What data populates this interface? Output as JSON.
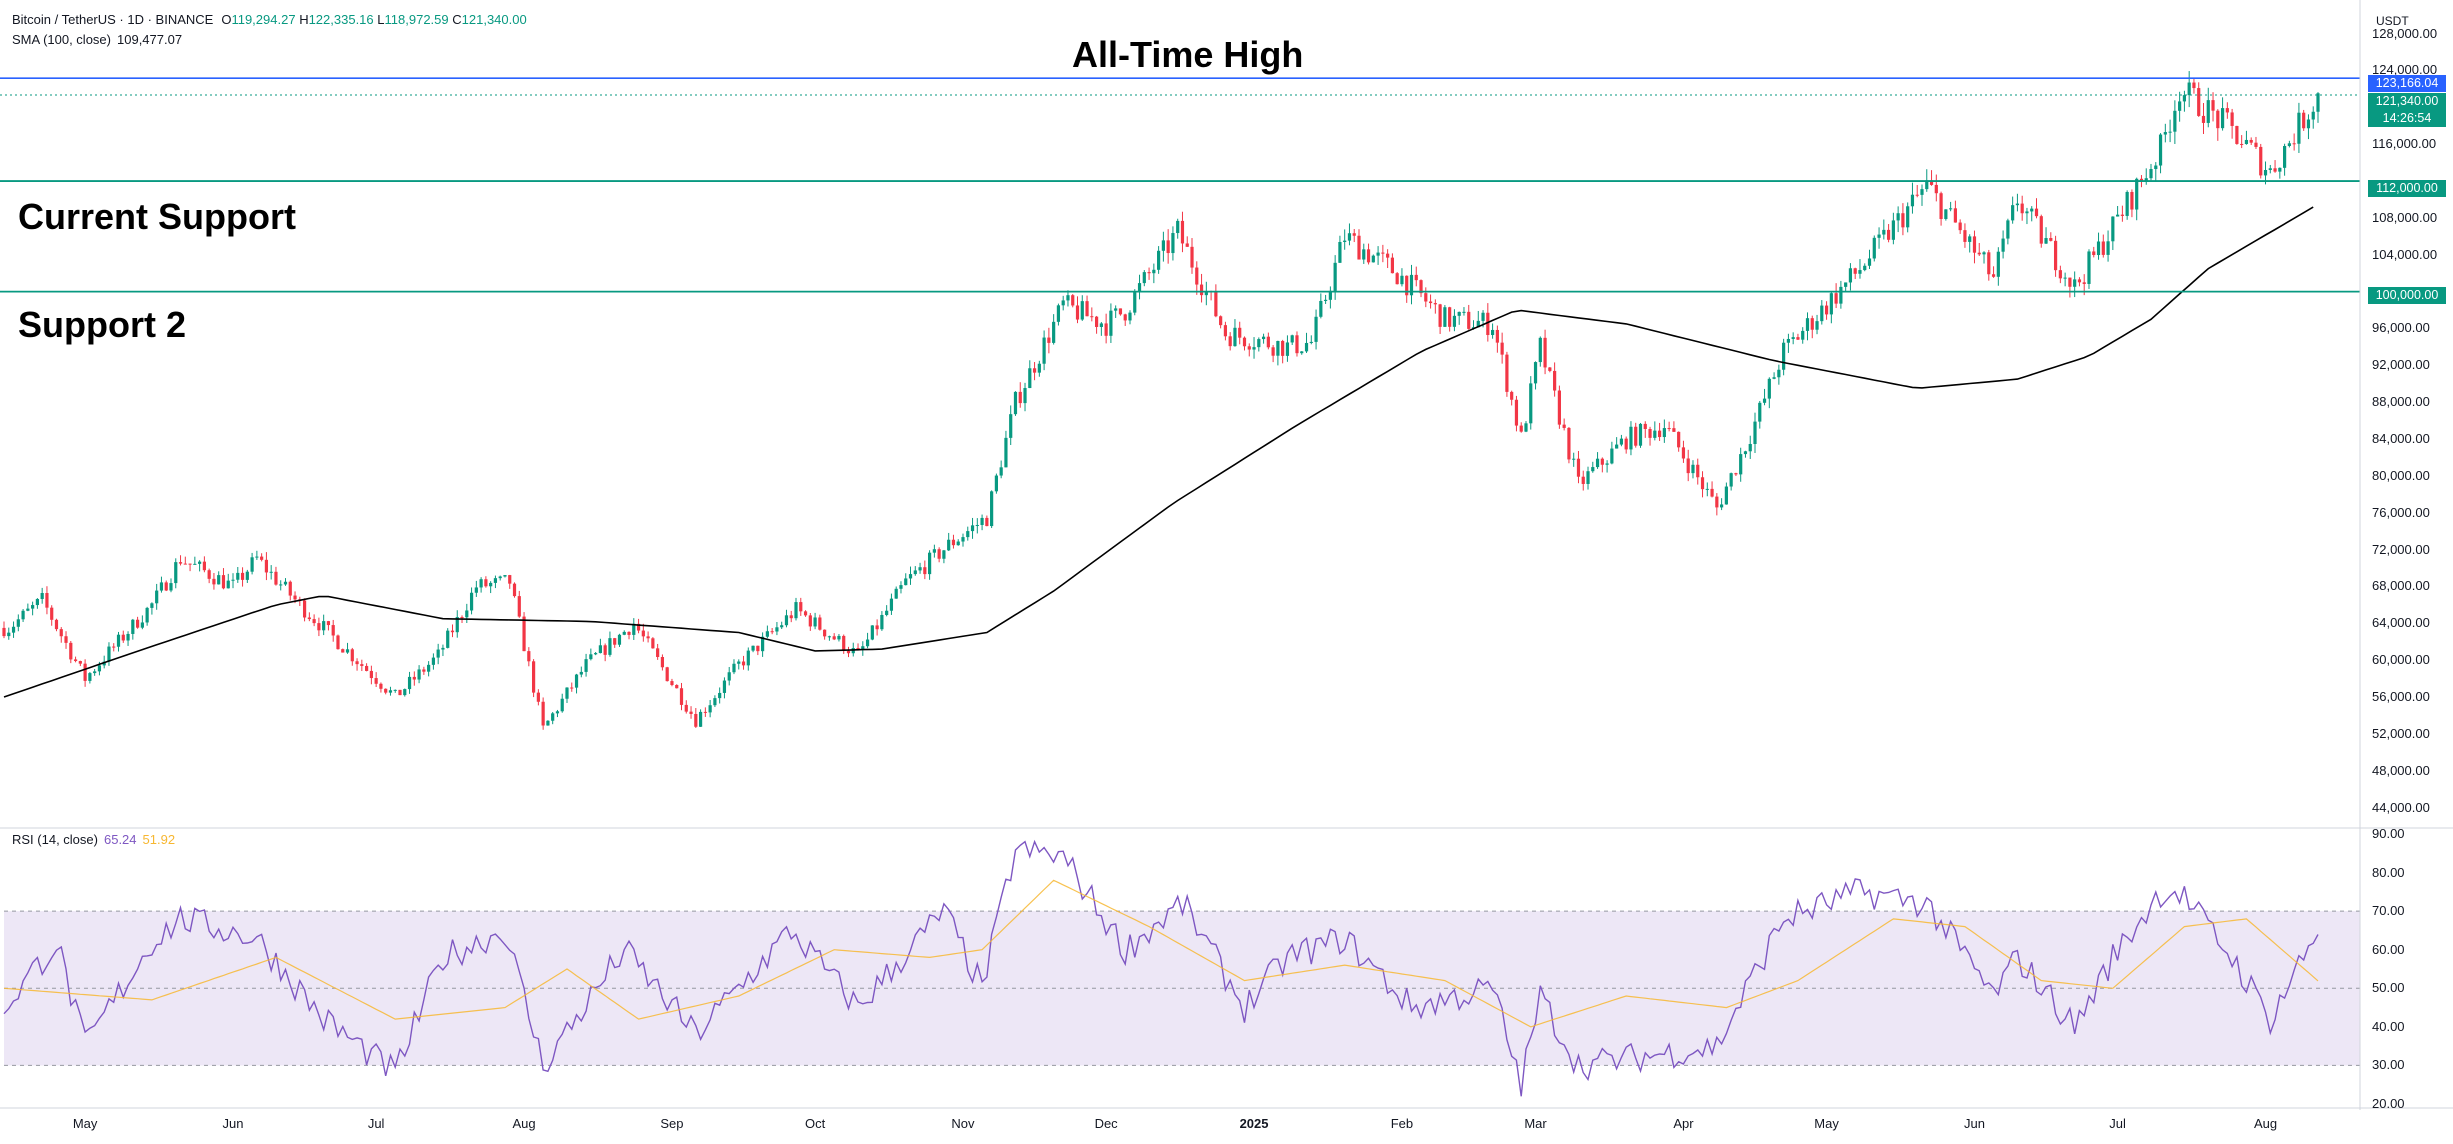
{
  "header": {
    "symbol": "Bitcoin / TetherUS · 1D · BINANCE",
    "open_label": "O",
    "open": "119,294.27",
    "high_label": "H",
    "high": "122,335.16",
    "low_label": "L",
    "low": "118,972.59",
    "close_label": "C",
    "close": "121,340.00",
    "sma_label": "SMA (100, close)",
    "sma_value": "109,477.07"
  },
  "currency": "USDT",
  "annotations": {
    "ath": "All-Time High",
    "current_support": "Current Support",
    "support2": "Support 2"
  },
  "price_tags": {
    "ath": "123,166.04",
    "last": "121,340.00",
    "countdown": "14:26:54",
    "support1": "112,000.00",
    "support2": "100,000.00"
  },
  "rsi_legend": {
    "label": "RSI (14, close)",
    "rsi": "65.24",
    "ma": "51.92"
  },
  "colors": {
    "up": "#089981",
    "down": "#f23645",
    "sma": "#000000",
    "level": "#089981",
    "ath_line": "#2962ff",
    "rsi": "#7e57c2",
    "rsi_ma": "#f7b731",
    "band": "#ede7f6"
  },
  "chart_data": [
    {
      "type": "candlestick",
      "x_range": [
        "2024-04-14",
        "2025-08-12"
      ],
      "ylim": [
        42000,
        131000
      ],
      "y_ticks": [
        "128,000.00",
        "124,000.00",
        "116,000.00",
        "108,000.00",
        "104,000.00",
        "96,000.00",
        "92,000.00",
        "88,000.00",
        "84,000.00",
        "80,000.00",
        "76,000.00",
        "72,000.00",
        "68,000.00",
        "64,000.00",
        "60,000.00",
        "56,000.00",
        "52,000.00",
        "48,000.00",
        "44,000.00"
      ],
      "y_tick_values": [
        128000,
        124000,
        116000,
        108000,
        104000,
        96000,
        92000,
        88000,
        84000,
        80000,
        76000,
        72000,
        68000,
        64000,
        60000,
        56000,
        52000,
        48000,
        44000
      ],
      "x_ticks": [
        "May",
        "Jun",
        "Jul",
        "Aug",
        "Sep",
        "Oct",
        "Nov",
        "Dec",
        "2025",
        "Feb",
        "Mar",
        "Apr",
        "May",
        "Jun",
        "Jul",
        "Aug"
      ],
      "x_tick_dates": [
        "2024-05-01",
        "2024-06-01",
        "2024-07-01",
        "2024-08-01",
        "2024-09-01",
        "2024-10-01",
        "2024-11-01",
        "2024-12-01",
        "2025-01-01",
        "2025-02-01",
        "2025-03-01",
        "2025-04-01",
        "2025-05-01",
        "2025-06-01",
        "2025-07-01",
        "2025-08-01"
      ],
      "levels": [
        123166.04,
        112000,
        100000
      ],
      "close_path": [
        [
          "2024-04-15",
          63500
        ],
        [
          "2024-04-22",
          66500
        ],
        [
          "2024-05-01",
          58000
        ],
        [
          "2024-05-08",
          62000
        ],
        [
          "2024-05-15",
          66000
        ],
        [
          "2024-05-21",
          71000
        ],
        [
          "2024-06-01",
          68000
        ],
        [
          "2024-06-06",
          71000
        ],
        [
          "2024-06-15",
          66000
        ],
        [
          "2024-06-25",
          61000
        ],
        [
          "2024-07-05",
          56000
        ],
        [
          "2024-07-14",
          60500
        ],
        [
          "2024-07-22",
          68000
        ],
        [
          "2024-07-29",
          68500
        ],
        [
          "2024-08-05",
          52500
        ],
        [
          "2024-08-14",
          59500
        ],
        [
          "2024-08-24",
          64000
        ],
        [
          "2024-09-06",
          53500
        ],
        [
          "2024-09-15",
          59500
        ],
        [
          "2024-09-27",
          65500
        ],
        [
          "2024-10-10",
          60500
        ],
        [
          "2024-10-20",
          68500
        ],
        [
          "2024-10-29",
          72500
        ],
        [
          "2024-11-06",
          75500
        ],
        [
          "2024-11-12",
          88000
        ],
        [
          "2024-11-22",
          98500
        ],
        [
          "2024-12-01",
          96500
        ],
        [
          "2024-12-05",
          98000
        ],
        [
          "2024-12-16",
          106500
        ],
        [
          "2024-12-26",
          95500
        ],
        [
          "2025-01-08",
          94000
        ],
        [
          "2025-01-13",
          94500
        ],
        [
          "2025-01-20",
          106000
        ],
        [
          "2025-01-31",
          102000
        ],
        [
          "2025-02-10",
          97000
        ],
        [
          "2025-02-20",
          96500
        ],
        [
          "2025-02-26",
          84000
        ],
        [
          "2025-03-02",
          94000
        ],
        [
          "2025-03-10",
          79000
        ],
        [
          "2025-03-20",
          84000
        ],
        [
          "2025-03-28",
          85500
        ],
        [
          "2025-04-08",
          76500
        ],
        [
          "2025-04-15",
          84500
        ],
        [
          "2025-04-22",
          93500
        ],
        [
          "2025-05-08",
          102500
        ],
        [
          "2025-05-22",
          111500
        ],
        [
          "2025-06-05",
          101500
        ],
        [
          "2025-06-10",
          110000
        ],
        [
          "2025-06-22",
          100500
        ],
        [
          "2025-06-30",
          107000
        ],
        [
          "2025-07-10",
          115500
        ],
        [
          "2025-07-14",
          122000
        ],
        [
          "2025-07-25",
          117500
        ],
        [
          "2025-08-02",
          113000
        ],
        [
          "2025-08-12",
          121340
        ]
      ],
      "sma100_path": [
        [
          "2024-04-14",
          56000
        ],
        [
          "2024-05-15",
          61500
        ],
        [
          "2024-06-10",
          66000
        ],
        [
          "2024-06-20",
          67000
        ],
        [
          "2024-07-15",
          64500
        ],
        [
          "2024-08-15",
          64200
        ],
        [
          "2024-09-15",
          63000
        ],
        [
          "2024-10-01",
          61000
        ],
        [
          "2024-10-15",
          61200
        ],
        [
          "2024-11-06",
          63000
        ],
        [
          "2024-11-20",
          67500
        ],
        [
          "2024-12-15",
          77000
        ],
        [
          "2025-01-10",
          85500
        ],
        [
          "2025-02-05",
          93500
        ],
        [
          "2025-02-25",
          98000
        ],
        [
          "2025-03-20",
          96500
        ],
        [
          "2025-04-20",
          92500
        ],
        [
          "2025-05-20",
          89500
        ],
        [
          "2025-06-10",
          90500
        ],
        [
          "2025-06-25",
          93000
        ],
        [
          "2025-07-08",
          97000
        ],
        [
          "2025-07-20",
          102500
        ],
        [
          "2025-08-12",
          109477.07
        ]
      ]
    },
    {
      "type": "line",
      "title": "RSI (14, close)",
      "ylim": [
        20,
        90
      ],
      "y_ticks": [
        "90.00",
        "80.00",
        "70.00",
        "60.00",
        "50.00",
        "40.00",
        "30.00",
        "20.00"
      ],
      "y_tick_values": [
        90,
        80,
        70,
        60,
        50,
        40,
        30,
        20
      ],
      "bands": [
        70,
        50,
        30
      ],
      "series": [
        {
          "name": "RSI",
          "points": [
            [
              "2024-04-14",
              45
            ],
            [
              "2024-04-25",
              62
            ],
            [
              "2024-05-01",
              35
            ],
            [
              "2024-05-15",
              62
            ],
            [
              "2024-05-21",
              68
            ],
            [
              "2024-06-06",
              63
            ],
            [
              "2024-06-20",
              42
            ],
            [
              "2024-07-05",
              28
            ],
            [
              "2024-07-15",
              58
            ],
            [
              "2024-07-28",
              65
            ],
            [
              "2024-08-05",
              30
            ],
            [
              "2024-08-22",
              60
            ],
            [
              "2024-09-06",
              38
            ],
            [
              "2024-09-26",
              65
            ],
            [
              "2024-10-10",
              45
            ],
            [
              "2024-10-28",
              70
            ],
            [
              "2024-11-05",
              50
            ],
            [
              "2024-11-12",
              86
            ],
            [
              "2024-11-22",
              84
            ],
            [
              "2024-12-05",
              60
            ],
            [
              "2024-12-17",
              72
            ],
            [
              "2024-12-30",
              45
            ],
            [
              "2025-01-08",
              58
            ],
            [
              "2025-01-20",
              63
            ],
            [
              "2025-02-03",
              45
            ],
            [
              "2025-02-20",
              50
            ],
            [
              "2025-02-26",
              25
            ],
            [
              "2025-03-02",
              48
            ],
            [
              "2025-03-10",
              30
            ],
            [
              "2025-04-08",
              35
            ],
            [
              "2025-04-22",
              68
            ],
            [
              "2025-05-08",
              75
            ],
            [
              "2025-05-22",
              72
            ],
            [
              "2025-06-05",
              48
            ],
            [
              "2025-06-10",
              58
            ],
            [
              "2025-06-22",
              40
            ],
            [
              "2025-06-30",
              58
            ],
            [
              "2025-07-10",
              75
            ],
            [
              "2025-07-14",
              75
            ],
            [
              "2025-07-25",
              58
            ],
            [
              "2025-08-02",
              42
            ],
            [
              "2025-08-12",
              65.24
            ]
          ]
        },
        {
          "name": "RSI MA",
          "points": [
            [
              "2024-04-14",
              50
            ],
            [
              "2024-05-15",
              47
            ],
            [
              "2024-06-10",
              58
            ],
            [
              "2024-07-05",
              42
            ],
            [
              "2024-07-28",
              45
            ],
            [
              "2024-08-10",
              55
            ],
            [
              "2024-08-25",
              42
            ],
            [
              "2024-09-15",
              48
            ],
            [
              "2024-10-05",
              60
            ],
            [
              "2024-10-25",
              58
            ],
            [
              "2024-11-05",
              60
            ],
            [
              "2024-11-20",
              78
            ],
            [
              "2024-12-10",
              66
            ],
            [
              "2024-12-30",
              52
            ],
            [
              "2025-01-20",
              56
            ],
            [
              "2025-02-10",
              52
            ],
            [
              "2025-02-28",
              40
            ],
            [
              "2025-03-20",
              48
            ],
            [
              "2025-04-10",
              45
            ],
            [
              "2025-04-25",
              52
            ],
            [
              "2025-05-15",
              68
            ],
            [
              "2025-05-30",
              66
            ],
            [
              "2025-06-15",
              52
            ],
            [
              "2025-06-30",
              50
            ],
            [
              "2025-07-15",
              66
            ],
            [
              "2025-07-28",
              68
            ],
            [
              "2025-08-12",
              51.92
            ]
          ]
        }
      ]
    }
  ]
}
